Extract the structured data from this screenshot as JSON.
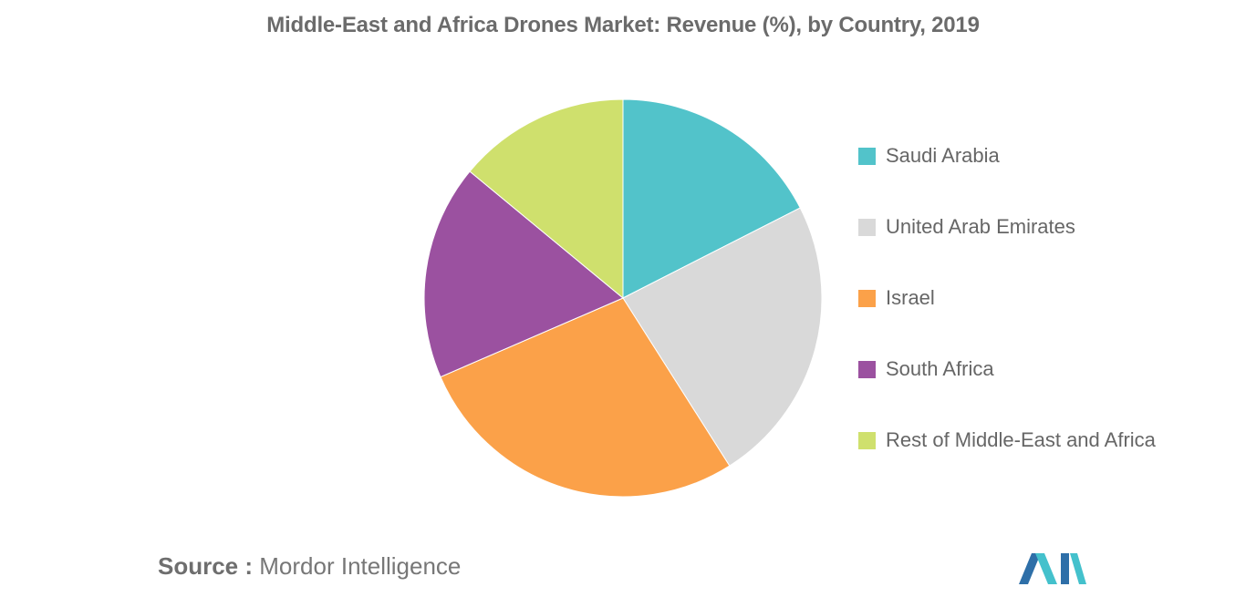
{
  "chart_data": {
    "type": "pie",
    "title": "Middle-East and Africa Drones Market: Revenue (%), by Country, 2019",
    "slices": [
      {
        "label": "Saudi Arabia",
        "value": 17.5,
        "color": "#52c3ca"
      },
      {
        "label": "United Arab Emirates",
        "value": 23.5,
        "color": "#d9d9d9"
      },
      {
        "label": "Israel",
        "value": 27.5,
        "color": "#fba149"
      },
      {
        "label": "South Africa",
        "value": 17.5,
        "color": "#9b51a0"
      },
      {
        "label": "Rest of Middle-East and Africa",
        "value": 14.0,
        "color": "#cfe06d"
      }
    ],
    "start_angle": "12 o'clock",
    "direction": "clockwise",
    "legend_position": "right"
  },
  "footer": {
    "source_key": "Source :",
    "source_value": "Mordor Intelligence"
  },
  "logo": {
    "icon": "mordor-intelligence-logo-icon",
    "colors": [
      "#2e6fa8",
      "#44c1cc"
    ]
  }
}
